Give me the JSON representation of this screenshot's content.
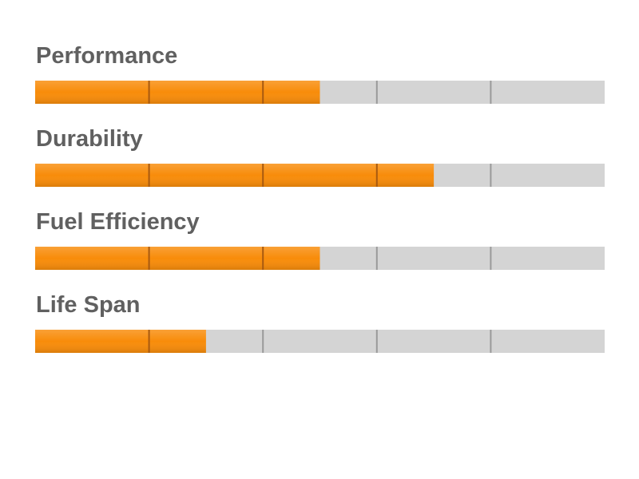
{
  "ratings": {
    "xlim": [
      0,
      5
    ],
    "xticks": [
      1,
      2,
      3,
      4
    ],
    "color": "#f88c0a",
    "track_color": "#d4d4d4",
    "items": [
      {
        "label": "Performance",
        "value": 2.5
      },
      {
        "label": "Durability",
        "value": 3.5
      },
      {
        "label": "Fuel Efficiency",
        "value": 2.5
      },
      {
        "label": "Life Span",
        "value": 1.5
      }
    ]
  }
}
